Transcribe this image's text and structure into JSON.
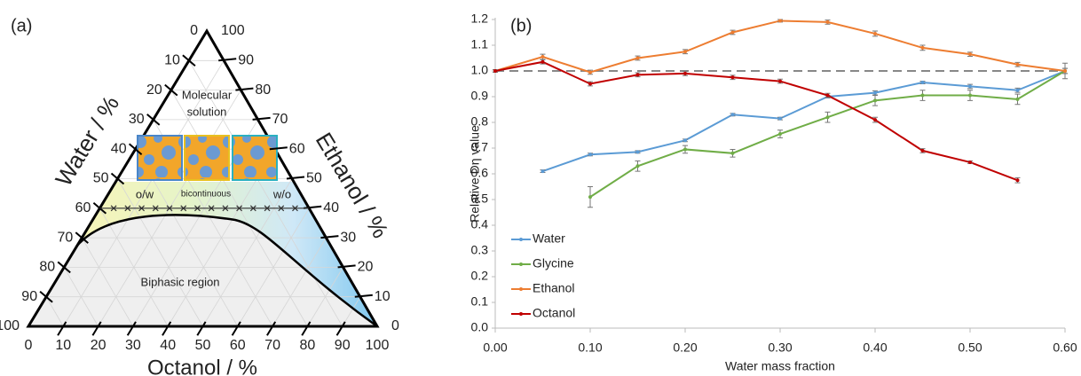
{
  "chart_data": [
    {
      "type": "ternary",
      "panel_label": "(a)",
      "axes": [
        {
          "label": "Water / %",
          "ticks": [
            0,
            10,
            20,
            30,
            40,
            50,
            60,
            70,
            80,
            90,
            100
          ]
        },
        {
          "label": "Octanol / %",
          "ticks": [
            0,
            10,
            20,
            30,
            40,
            50,
            60,
            70,
            80,
            90,
            100
          ]
        },
        {
          "label": "Ethanol / %",
          "ticks": [
            0,
            10,
            20,
            30,
            40,
            50,
            60,
            70,
            80,
            90,
            100
          ]
        }
      ],
      "grid": true,
      "mixing_line": 40,
      "region_labels": [
        "Molecular",
        "solution",
        "o/w",
        "bicontinuous",
        "w/o",
        "Biphasic region"
      ]
    },
    {
      "type": "line",
      "panel_label": "(b)",
      "x_label": "Water mass fraction",
      "y_label": "Relative Dη value",
      "x": [
        0,
        0.05,
        0.1,
        0.15,
        0.2,
        0.25,
        0.3,
        0.35,
        0.4,
        0.45,
        0.5,
        0.55,
        0.6
      ],
      "xlim": [
        0,
        0.6
      ],
      "xticks": [
        {
          "value": 0,
          "label": "0.00"
        },
        {
          "value": 0.1,
          "label": "0.10"
        },
        {
          "value": 0.2,
          "label": "0.20"
        },
        {
          "value": 0.3,
          "label": "0.30"
        },
        {
          "value": 0.4,
          "label": "0.40"
        },
        {
          "value": 0.5,
          "label": "0.50"
        },
        {
          "value": 0.6,
          "label": "0.60"
        }
      ],
      "ylim": [
        0,
        1.2
      ],
      "yticks": [
        {
          "value": 0,
          "label": "0.0"
        },
        0.1,
        0.2,
        0.3,
        0.4,
        0.5,
        0.6,
        0.7,
        0.8,
        0.9,
        {
          "value": 1,
          "label": "1.0"
        },
        1.1,
        1.2
      ],
      "reference_line": 1,
      "legend": "lower left",
      "series": [
        {
          "name": "Water",
          "color": "#5b9bd5",
          "values": [
            null,
            0.61,
            0.675,
            0.685,
            0.73,
            0.83,
            0.815,
            0.9,
            0.915,
            0.955,
            0.94,
            0.925,
            1.0
          ],
          "errors": [
            null,
            0.005,
            0.005,
            0.005,
            0.005,
            0.005,
            0.005,
            0.005,
            0.008,
            0.005,
            0.008,
            0.008,
            0.01
          ]
        },
        {
          "name": "Glycine",
          "color": "#70ad47",
          "values": [
            null,
            null,
            0.51,
            0.63,
            0.695,
            0.68,
            0.755,
            0.82,
            0.885,
            0.905,
            0.905,
            0.89,
            1.0
          ],
          "errors": [
            null,
            null,
            0.04,
            0.02,
            0.015,
            0.015,
            0.015,
            0.02,
            0.02,
            0.02,
            0.02,
            0.02,
            0.03
          ]
        },
        {
          "name": "Ethanol",
          "color": "#ed7d31",
          "values": [
            1.0,
            1.055,
            0.995,
            1.05,
            1.075,
            1.15,
            1.195,
            1.19,
            1.145,
            1.09,
            1.065,
            1.025,
            1.0
          ],
          "errors": [
            0.005,
            0.01,
            0.008,
            0.008,
            0.008,
            0.008,
            0.005,
            0.008,
            0.01,
            0.01,
            0.008,
            0.008,
            0.01
          ]
        },
        {
          "name": "Octanol",
          "color": "#c00000",
          "values": [
            1.0,
            1.035,
            0.95,
            0.985,
            0.99,
            0.975,
            0.96,
            0.905,
            0.81,
            0.69,
            0.645,
            0.575,
            null
          ],
          "errors": [
            0.005,
            0.008,
            0.008,
            0.008,
            0.008,
            0.008,
            0.008,
            0.008,
            0.01,
            0.008,
            0.005,
            0.01,
            null
          ]
        }
      ]
    }
  ]
}
